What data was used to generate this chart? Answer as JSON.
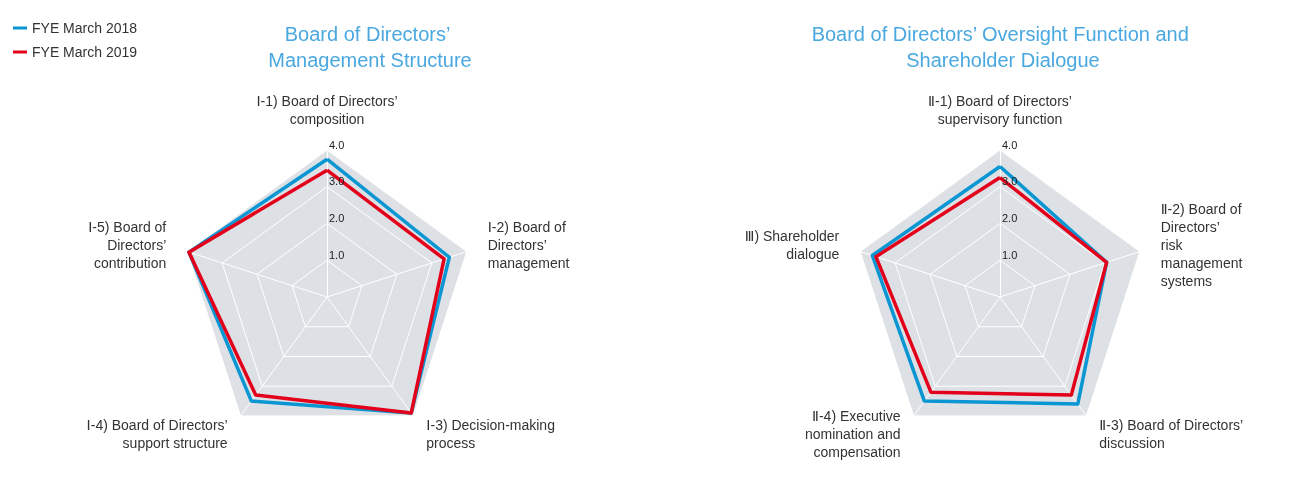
{
  "chart_data": [
    {
      "type": "radar",
      "title": "Board of Directors’ Management Structure",
      "categories": [
        "Ⅰ-1) Board of Directors’ composition",
        "Ⅰ-2) Board of Directors’ management",
        "Ⅰ-3) Decision-making process",
        "Ⅰ-4) Board of Directors’ support structure",
        "Ⅰ-5) Board of Directors’ contribution"
      ],
      "ylim": [
        0,
        4
      ],
      "yticks": [
        {
          "value": 1,
          "label": "1.0"
        },
        {
          "value": 2,
          "label": "2.0"
        },
        {
          "value": 3,
          "label": "3.0"
        },
        {
          "value": 4,
          "label": "4.0"
        }
      ],
      "legend": "top left",
      "series": [
        {
          "name": "FYE March 2018",
          "color": "#0a96d2",
          "values": [
            3.75,
            3.5,
            3.9,
            3.5,
            3.95
          ]
        },
        {
          "name": "FYE March 2019",
          "color": "#e3001b",
          "values": [
            3.45,
            3.35,
            3.9,
            3.3,
            3.95
          ]
        }
      ]
    },
    {
      "type": "radar",
      "title": "Board of Directors’ Oversight Function and Shareholder Dialogue",
      "categories": [
        "Ⅱ-1) Board of Directors’ supervisory function",
        "Ⅱ-2) Board of Directors’ risk management systems",
        "Ⅱ-3) Board of Directors’ discussion",
        "Ⅱ-4) Executive nomination and compensation",
        "Ⅲ) Shareholder dialogue"
      ],
      "ylim": [
        0,
        4
      ],
      "yticks": [
        {
          "value": 1,
          "label": "1.0"
        },
        {
          "value": 2,
          "label": "2.0"
        },
        {
          "value": 3,
          "label": "3.0"
        },
        {
          "value": 4,
          "label": "4.0"
        }
      ],
      "legend": false,
      "series": [
        {
          "color": "#0a96d2",
          "values": [
            3.55,
            3.05,
            3.6,
            3.5,
            3.65
          ]
        },
        {
          "color": "#e3001b",
          "values": [
            3.25,
            3.05,
            3.3,
            3.2,
            3.55
          ]
        }
      ]
    }
  ]
}
